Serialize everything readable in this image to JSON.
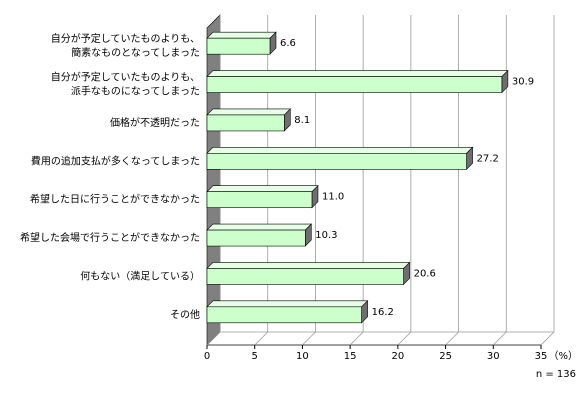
{
  "chart_data": {
    "type": "bar",
    "orientation": "horizontal",
    "categories": [
      [
        "自分が予定していたものよりも、",
        "簡素なものとなってしまった"
      ],
      [
        "自分が予定していたものよりも、",
        "派手なものになってしまった"
      ],
      [
        "価格が不透明だった"
      ],
      [
        "費用の追加支払が多くなってしまった"
      ],
      [
        "希望した日に行うことができなかった"
      ],
      [
        "希望した会場で行うことができなかった"
      ],
      [
        "何もない（満足している）"
      ],
      [
        "その他"
      ]
    ],
    "values": [
      6.6,
      30.9,
      8.1,
      27.2,
      11.0,
      10.3,
      20.6,
      16.2
    ],
    "value_labels": [
      "6.6",
      "30.9",
      "8.1",
      "27.2",
      "11.0",
      "10.3",
      "20.6",
      "16.2"
    ],
    "color": "#ccffcc",
    "xlim": [
      0,
      35
    ],
    "xticks": [
      0,
      5,
      10,
      15,
      20,
      25,
      30,
      35
    ],
    "x_unit": "（%）",
    "note": "n = 136",
    "grid": true
  }
}
